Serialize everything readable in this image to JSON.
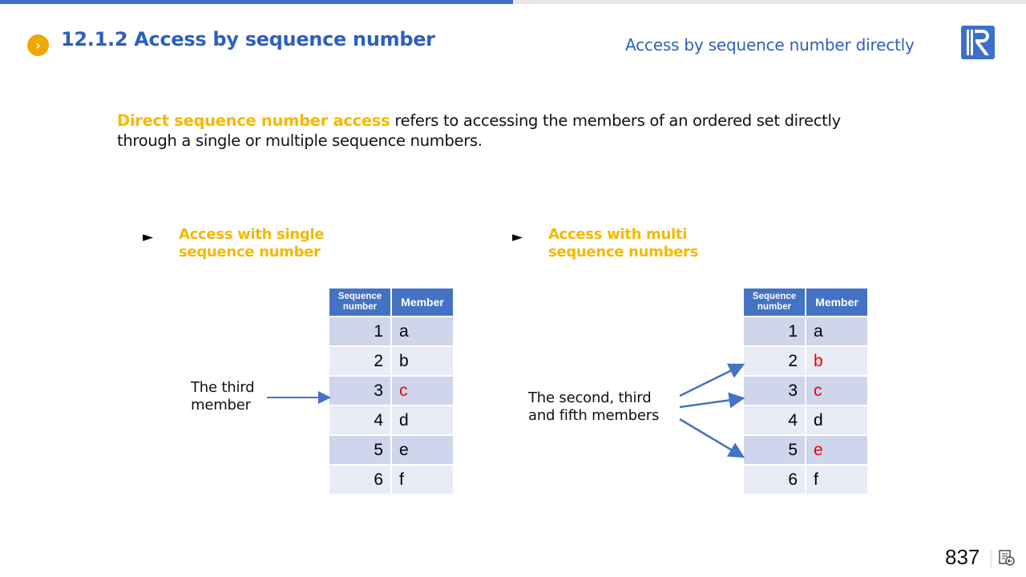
{
  "header": {
    "title": "12.1.2 Access by sequence number",
    "subtitle": "Access by sequence number directly",
    "logo": "R",
    "accent": "#2c5fbf"
  },
  "intro": {
    "highlight": "Direct sequence number access",
    "text": " refers to accessing the members of an ordered set directly through a single or multiple sequence numbers."
  },
  "left": {
    "heading": "Access with single sequence number",
    "label": "The third member",
    "table": {
      "headers": [
        "Sequence number",
        "Member"
      ],
      "rows": [
        [
          "1",
          "a"
        ],
        [
          "2",
          "b"
        ],
        [
          "3",
          "c"
        ],
        [
          "4",
          "d"
        ],
        [
          "5",
          "e"
        ],
        [
          "6",
          "f"
        ]
      ],
      "highlighted": [
        3
      ]
    }
  },
  "right": {
    "heading": "Access with multi sequence numbers",
    "label": "The second, third and fifth members",
    "table": {
      "headers": [
        "Sequence number",
        "Member"
      ],
      "rows": [
        [
          "1",
          "a"
        ],
        [
          "2",
          "b"
        ],
        [
          "3",
          "c"
        ],
        [
          "4",
          "d"
        ],
        [
          "5",
          "e"
        ],
        [
          "6",
          "f"
        ]
      ],
      "highlighted": [
        2,
        3,
        5
      ]
    }
  },
  "footer": {
    "page_number": "837",
    "icon": "notes-icon"
  }
}
